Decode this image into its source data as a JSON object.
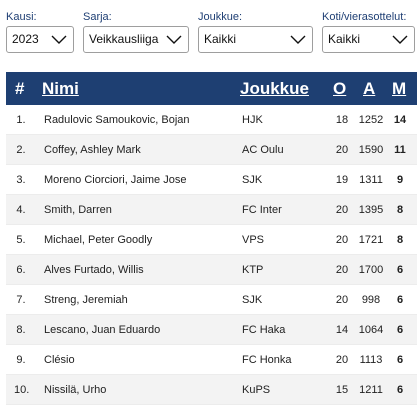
{
  "filters": {
    "season": {
      "label": "Kausi:",
      "value": "2023"
    },
    "series": {
      "label": "Sarja:",
      "value": "Veikkausliiga"
    },
    "team": {
      "label": "Joukkue:",
      "value": "Kaikki"
    },
    "home_away": {
      "label": "Koti/vierasottelut:",
      "value": "Kaikki"
    }
  },
  "table": {
    "headers": {
      "rank": "#",
      "name": "Nimi",
      "team": "Joukkue",
      "o": "O",
      "a": "A",
      "m": "M"
    },
    "rows": [
      {
        "rank": "1.",
        "name": "Radulovic Samoukovic, Bojan",
        "team": "HJK",
        "o": "18",
        "a": "1252",
        "m": "14"
      },
      {
        "rank": "2.",
        "name": "Coffey, Ashley Mark",
        "team": "AC Oulu",
        "o": "20",
        "a": "1590",
        "m": "11"
      },
      {
        "rank": "3.",
        "name": "Moreno Ciorciori, Jaime Jose",
        "team": "SJK",
        "o": "19",
        "a": "1311",
        "m": "9"
      },
      {
        "rank": "4.",
        "name": "Smith, Darren",
        "team": "FC Inter",
        "o": "20",
        "a": "1395",
        "m": "8"
      },
      {
        "rank": "5.",
        "name": "Michael, Peter Goodly",
        "team": "VPS",
        "o": "20",
        "a": "1721",
        "m": "8"
      },
      {
        "rank": "6.",
        "name": "Alves Furtado, Willis",
        "team": "KTP",
        "o": "20",
        "a": "1700",
        "m": "6"
      },
      {
        "rank": "7.",
        "name": "Streng, Jeremiah",
        "team": "SJK",
        "o": "20",
        "a": "998",
        "m": "6"
      },
      {
        "rank": "8.",
        "name": "Lescano, Juan Eduardo",
        "team": "FC Haka",
        "o": "14",
        "a": "1064",
        "m": "6"
      },
      {
        "rank": "9.",
        "name": "Clésio",
        "team": "FC Honka",
        "o": "20",
        "a": "1113",
        "m": "6"
      },
      {
        "rank": "10.",
        "name": "Nissilä, Urho",
        "team": "KuPS",
        "o": "15",
        "a": "1211",
        "m": "6"
      }
    ]
  }
}
